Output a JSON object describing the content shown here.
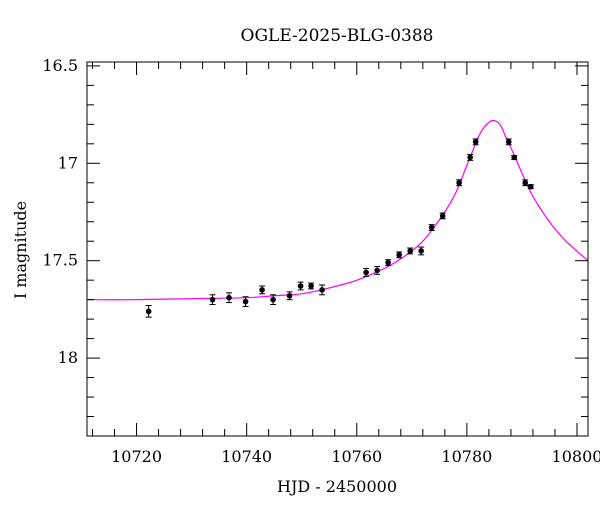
{
  "chart_data": {
    "type": "scatter",
    "title": "OGLE-2025-BLG-0388",
    "xlabel": "HJD - 2450000",
    "ylabel": "I magnitude",
    "xlim": [
      10711,
      10802
    ],
    "ylim": [
      18.4,
      16.48
    ],
    "y_inverted": true,
    "x_ticks": [
      10720,
      10740,
      10760,
      10780,
      10800
    ],
    "y_ticks": [
      16.5,
      17,
      17.5,
      18
    ],
    "y_tick_labels": [
      "16.5",
      "17",
      "17.5",
      "18"
    ],
    "x_minor_step": 4,
    "y_minor_step": 0.1,
    "grid": false,
    "series": [
      {
        "kind": "points",
        "color": "#000000",
        "x": [
          10722.2,
          10733.8,
          10736.8,
          10739.8,
          10742.8,
          10744.8,
          10747.8,
          10749.8,
          10751.7,
          10753.7,
          10761.7,
          10763.7,
          10765.7,
          10767.7,
          10769.7,
          10771.7,
          10773.6,
          10775.6,
          10778.6,
          10780.6,
          10781.6,
          10787.6,
          10788.6,
          10790.6,
          10791.6
        ],
        "y": [
          17.76,
          17.7,
          17.69,
          17.71,
          17.65,
          17.7,
          17.68,
          17.63,
          17.63,
          17.65,
          17.56,
          17.55,
          17.51,
          17.47,
          17.45,
          17.45,
          17.33,
          17.27,
          17.1,
          16.97,
          16.89,
          16.89,
          16.97,
          17.1,
          17.12
        ],
        "yerr": [
          0.03,
          0.025,
          0.025,
          0.025,
          0.02,
          0.025,
          0.02,
          0.02,
          0.015,
          0.025,
          0.02,
          0.02,
          0.015,
          0.015,
          0.015,
          0.02,
          0.015,
          0.015,
          0.015,
          0.015,
          0.015,
          0.015,
          0.01,
          0.015,
          0.01
        ]
      },
      {
        "kind": "model",
        "color": "#ff00ff",
        "x": [
          10711,
          10720,
          10730,
          10740,
          10745,
          10750,
          10755,
          10760,
          10765,
          10768,
          10770,
          10772,
          10774,
          10776,
          10778,
          10780,
          10781,
          10782,
          10783,
          10784,
          10784.8,
          10786,
          10787,
          10788,
          10790,
          10792,
          10795,
          10798,
          10802
        ],
        "y": [
          17.7,
          17.7,
          17.695,
          17.69,
          17.68,
          17.67,
          17.64,
          17.6,
          17.54,
          17.49,
          17.45,
          17.4,
          17.33,
          17.25,
          17.15,
          17.01,
          16.94,
          16.87,
          16.82,
          16.79,
          16.78,
          16.8,
          16.86,
          16.92,
          17.05,
          17.17,
          17.3,
          17.4,
          17.5
        ]
      }
    ]
  }
}
